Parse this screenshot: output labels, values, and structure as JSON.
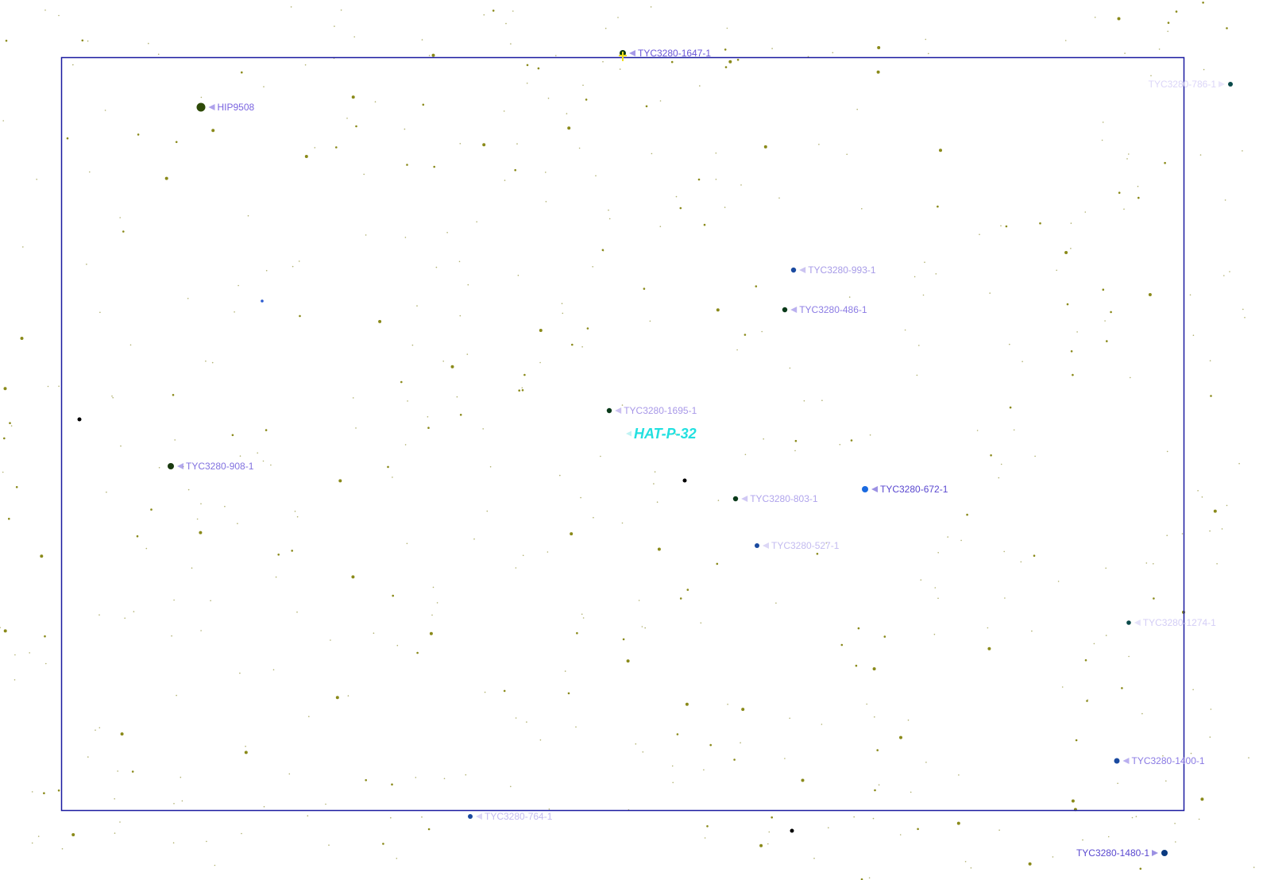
{
  "chart": {
    "field_frame_color": "#1a1aa0",
    "background_star_color": "#8a8a1a",
    "target": {
      "name": "HAT-P-32",
      "color": "#22e0e0"
    },
    "labeled_stars": [
      {
        "name": "TYC3280-1647-1",
        "star_color": "#0d3a10",
        "label_color": "#6a55d8",
        "marker": "yellow-cross"
      },
      {
        "name": "HIP9508",
        "star_color": "#2e4a08",
        "label_color": "#7a64e0"
      },
      {
        "name": "TYC3280-786-1",
        "star_color": "#0a4a4a",
        "label_color": "#dcd6f8"
      },
      {
        "name": "TYC3280-993-1",
        "star_color": "#1a4aa0",
        "label_color": "#a89ce8"
      },
      {
        "name": "TYC3280-486-1",
        "star_color": "#0a3a1a",
        "label_color": "#8c7ce4"
      },
      {
        "name": "TYC3280-1695-1",
        "star_color": "#0a3a1a",
        "label_color": "#a898e8"
      },
      {
        "name": "TYC3280-908-1",
        "star_color": "#1a3a10",
        "label_color": "#8272e0"
      },
      {
        "name": "TYC3280-672-1",
        "star_color": "#1a6ae0",
        "label_color": "#5a48d0"
      },
      {
        "name": "TYC3280-803-1",
        "star_color": "#0a3a1a",
        "label_color": "#b0a4ec"
      },
      {
        "name": "TYC3280-527-1",
        "star_color": "#1a4aa0",
        "label_color": "#c4bcf0"
      },
      {
        "name": "TYC3280-1274-1",
        "star_color": "#0a4a4a",
        "label_color": "#d4cef6"
      },
      {
        "name": "TYC3280-1400-1",
        "star_color": "#1a4aa0",
        "label_color": "#8a7ae4"
      },
      {
        "name": "TYC3280-764-1",
        "star_color": "#1a4aa0",
        "label_color": "#c4bcf0"
      },
      {
        "name": "TYC3280-1480-1",
        "star_color": "#0a3a80",
        "label_color": "#5a48d0"
      }
    ]
  }
}
